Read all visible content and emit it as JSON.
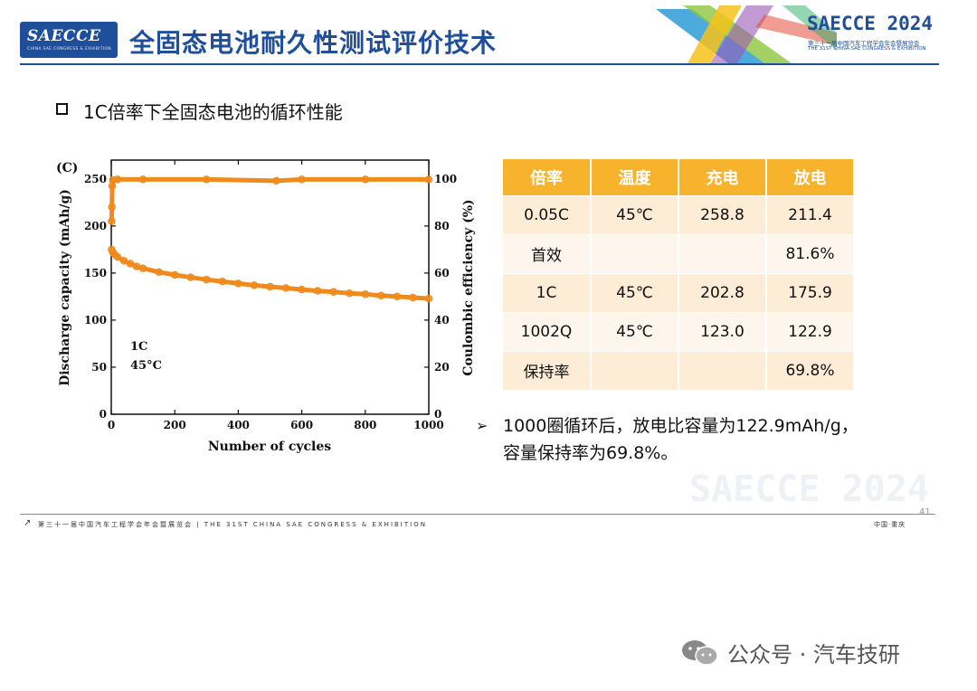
{
  "header": {
    "logo_text": "SAECCE",
    "logo_subtext": "CHINA SAE CONGRESS & EXHIBITION",
    "title": "全固态电池耐久性测试评价技术",
    "event_name": "SAECCE 2024",
    "event_cn": "第三十一届中国汽车工程学会年会暨展览会",
    "event_en": "THE 31ST CHINA-SAE CONGRESS & EXHIBITION"
  },
  "section": {
    "heading": "1C倍率下全固态电池的循环性能"
  },
  "chart_data": {
    "type": "scatter",
    "panel_label": "(C)",
    "xlabel": "Number of cycles",
    "ylabel_left": "Discharge capacity (mAh/g)",
    "ylabel_right": "Coulombic efficiency (%)",
    "xlim": [
      0,
      1000
    ],
    "ylim_left": [
      0,
      270
    ],
    "ylim_right": [
      0,
      108
    ],
    "x_ticks": [
      "0",
      "200",
      "400",
      "600",
      "800",
      "1000"
    ],
    "y_left_ticks": [
      "0",
      "50",
      "100",
      "150",
      "200",
      "250"
    ],
    "y_right_ticks": [
      "0",
      "20",
      "40",
      "60",
      "80",
      "100"
    ],
    "annotation": [
      "1C",
      "45°C"
    ],
    "color": "#f08a1c",
    "series": [
      {
        "axis": "left",
        "points": [
          [
            1,
            175
          ],
          [
            5,
            172
          ],
          [
            10,
            170
          ],
          [
            20,
            167
          ],
          [
            40,
            163
          ],
          [
            60,
            160
          ],
          [
            80,
            157
          ],
          [
            100,
            155
          ],
          [
            150,
            151
          ],
          [
            200,
            148
          ],
          [
            250,
            145.5
          ],
          [
            300,
            143
          ],
          [
            350,
            141
          ],
          [
            400,
            139
          ],
          [
            450,
            137
          ],
          [
            500,
            135.5
          ],
          [
            550,
            134
          ],
          [
            600,
            132.5
          ],
          [
            650,
            131
          ],
          [
            700,
            130
          ],
          [
            750,
            128.5
          ],
          [
            800,
            127.5
          ],
          [
            850,
            126
          ],
          [
            900,
            125
          ],
          [
            950,
            124
          ],
          [
            1000,
            122.9
          ]
        ]
      },
      {
        "axis": "right",
        "points": [
          [
            1,
            82
          ],
          [
            2,
            88
          ],
          [
            3,
            97
          ],
          [
            5,
            99.5
          ],
          [
            20,
            99.8
          ],
          [
            100,
            99.8
          ],
          [
            300,
            99.8
          ],
          [
            520,
            99.2
          ],
          [
            600,
            99.8
          ],
          [
            800,
            99.8
          ],
          [
            1000,
            99.8
          ]
        ]
      }
    ]
  },
  "table": {
    "headers": [
      "倍率",
      "温度",
      "充电",
      "放电"
    ],
    "rows": [
      [
        "0.05C",
        "45℃",
        "258.8",
        "211.4"
      ],
      [
        "首效",
        "",
        "",
        "81.6%"
      ],
      [
        "1C",
        "45℃",
        "202.8",
        "175.9"
      ],
      [
        "1002Q",
        "45℃",
        "123.0",
        "122.9"
      ],
      [
        "保持率",
        "",
        "",
        "69.8%"
      ]
    ]
  },
  "note": {
    "arrow": "➢",
    "line1": "1000圈循环后，放电比容量为122.9mAh/g，",
    "line2": "容量保持率为69.8%。"
  },
  "watermark": "SAECCE 2024",
  "page_number": "41",
  "footer": {
    "left_text": "第三十一届中国汽车工程学会年会暨展览会 | THE 31ST CHINA SAE CONGRESS & EXHIBITION",
    "right_text": "中国·重庆"
  },
  "attribution": {
    "text": "公众号 · 汽车技研"
  }
}
